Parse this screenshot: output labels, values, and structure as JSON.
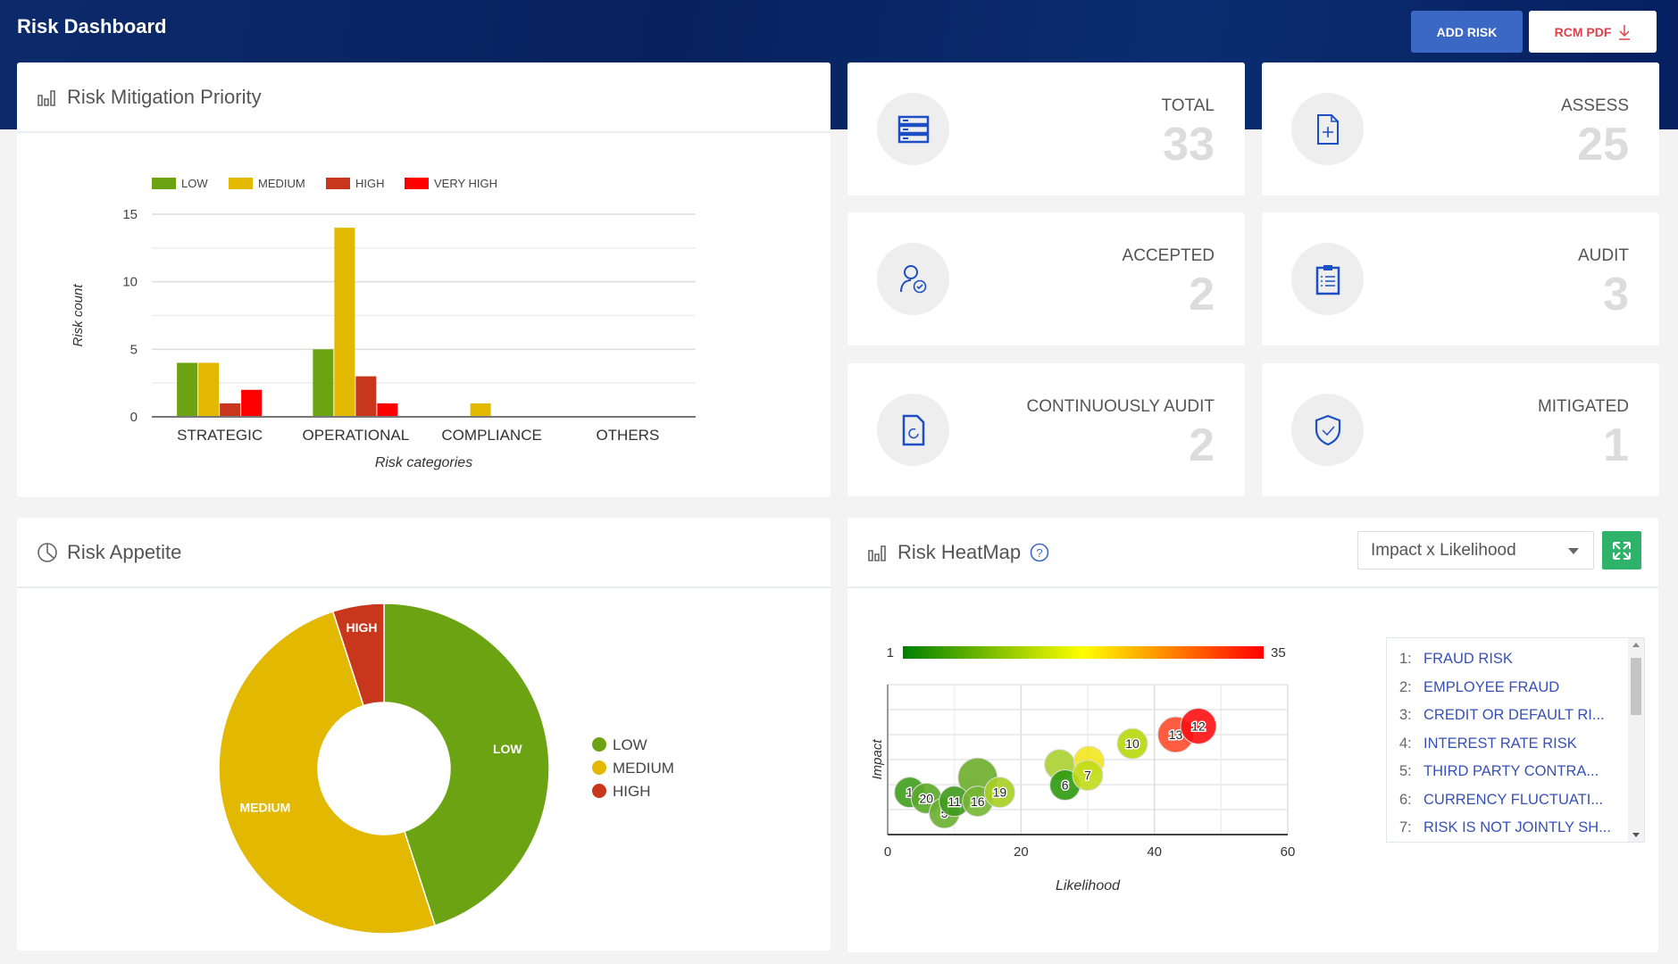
{
  "header": {
    "title": "Risk Dashboard",
    "add_risk": "ADD RISK",
    "rcm_pdf": "RCM PDF",
    "colors": {
      "band": "#0a2766",
      "add": "#3b68c4",
      "pdf_text": "#e0404a"
    }
  },
  "mitigation": {
    "title": "Risk Mitigation Priority",
    "icon": "bar-chart-icon"
  },
  "stats": [
    {
      "label": "TOTAL",
      "value": "33",
      "icon": "server-list-icon"
    },
    {
      "label": "ASSESS",
      "value": "25",
      "icon": "file-plus-icon"
    },
    {
      "label": "ACCEPTED",
      "value": "2",
      "icon": "user-check-icon"
    },
    {
      "label": "AUDIT",
      "value": "3",
      "icon": "clipboard-list-icon"
    },
    {
      "label": "CONTINUOUSLY AUDIT",
      "value": "2",
      "icon": "file-refresh-icon"
    },
    {
      "label": "MITIGATED",
      "value": "1",
      "icon": "shield-check-icon"
    }
  ],
  "appetite": {
    "title": "Risk Appetite",
    "icon": "pie-chart-icon"
  },
  "heatmap": {
    "title": "Risk HeatMap",
    "help_icon": "question-circle-icon",
    "select_value": "Impact x Likelihood",
    "expand_icon": "expand-icon",
    "risks": [
      {
        "n": "1:",
        "name": "FRAUD RISK"
      },
      {
        "n": "2:",
        "name": "EMPLOYEE FRAUD"
      },
      {
        "n": "3:",
        "name": "CREDIT OR DEFAULT RI..."
      },
      {
        "n": "4:",
        "name": "INTEREST RATE RISK"
      },
      {
        "n": "5:",
        "name": "THIRD PARTY CONTRA..."
      },
      {
        "n": "6:",
        "name": "CURRENCY FLUCTUATI..."
      },
      {
        "n": "7:",
        "name": "RISK IS NOT JOINTLY SH..."
      }
    ]
  },
  "chart_data": [
    {
      "type": "bar",
      "categories": [
        "STRATEGIC",
        "OPERATIONAL",
        "COMPLIANCE",
        "OTHERS"
      ],
      "series": [
        {
          "name": "LOW",
          "color": "#6ca312",
          "values": [
            4,
            5,
            0,
            0
          ]
        },
        {
          "name": "MEDIUM",
          "color": "#e3b800",
          "values": [
            4,
            14,
            1,
            0
          ]
        },
        {
          "name": "HIGH",
          "color": "#c8361b",
          "values": [
            1,
            3,
            0,
            0
          ]
        },
        {
          "name": "VERY HIGH",
          "color": "#ff0000",
          "values": [
            2,
            1,
            0,
            0
          ]
        }
      ],
      "xlabel": "Risk categories",
      "ylabel": "Risk count",
      "ylim": [
        0,
        15
      ],
      "yticks": [
        "0",
        "5",
        "10",
        "15"
      ],
      "grid": true,
      "legend": "top"
    },
    {
      "type": "pie",
      "donut": true,
      "slices": [
        {
          "label": "LOW",
          "value": 45,
          "color": "#6ca312"
        },
        {
          "label": "MEDIUM",
          "value": 50,
          "color": "#e3b800"
        },
        {
          "label": "HIGH",
          "value": 5,
          "color": "#c8361b"
        }
      ],
      "legend": "right"
    },
    {
      "type": "scatter",
      "bubble": true,
      "xlabel": "Likelihood",
      "ylabel": "Impact",
      "xlim": [
        0,
        60
      ],
      "ylim": [
        0,
        60
      ],
      "xticks": [
        "0",
        "20",
        "40",
        "60"
      ],
      "colorscale": {
        "min": "1",
        "max": "35",
        "colors": [
          "#008000",
          "#ffff00",
          "#ff0000"
        ]
      },
      "grid": true,
      "points": [
        {
          "label": "",
          "x": 13.5,
          "y": 22.8,
          "color": "#6aad2a"
        },
        {
          "label": "1",
          "x": 3.3,
          "y": 16.9,
          "color": "#3f9e1a"
        },
        {
          "label": "20",
          "x": 5.8,
          "y": 14.5,
          "color": "#5aa828"
        },
        {
          "label": "5",
          "x": 8.5,
          "y": 8.6,
          "color": "#6aaf30"
        },
        {
          "label": "11",
          "x": 10,
          "y": 13.3,
          "color": "#3e9a18"
        },
        {
          "label": "16",
          "x": 13.5,
          "y": 13.3,
          "color": "#74b634"
        },
        {
          "label": "19",
          "x": 16.8,
          "y": 16.9,
          "color": "#a6cf22"
        },
        {
          "label": "",
          "x": 25.8,
          "y": 28,
          "color": "#a8d030"
        },
        {
          "label": "6",
          "x": 26.6,
          "y": 19.8,
          "color": "#2e9a10"
        },
        {
          "label": "",
          "x": 30.2,
          "y": 29.3,
          "color": "#f2e61e"
        },
        {
          "label": "7",
          "x": 30,
          "y": 23.7,
          "color": "#c0dc1a"
        },
        {
          "label": "10",
          "x": 36.7,
          "y": 36.4,
          "color": "#b8d80c"
        },
        {
          "label": "13",
          "x": 43.2,
          "y": 40,
          "color": "#ff4a2c"
        },
        {
          "label": "12",
          "x": 46.6,
          "y": 43.4,
          "color": "#ff1010"
        }
      ]
    }
  ]
}
